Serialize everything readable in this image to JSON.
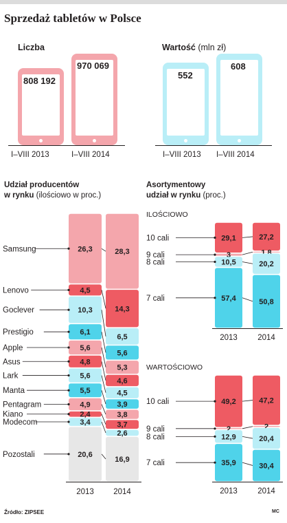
{
  "title": "Sprzedaż tabletów w Polsce",
  "source": "Źródło: ZIPSEE",
  "credit": "MC",
  "colors": {
    "pink": "#f4a6ac",
    "pink_light": "#f6b9bd",
    "red": "#ee5b63",
    "cyan": "#4fd3ea",
    "cyan_light": "#b9eef7",
    "grey": "#e7e7e7"
  },
  "sales": {
    "count": {
      "label": "Liczba",
      "periods": [
        "I–VIII 2013",
        "I–VIII 2014"
      ],
      "values": [
        "808 192",
        "970 069"
      ]
    },
    "value": {
      "label_bold": "Wartość",
      "label_unit": "(mln zł)",
      "periods": [
        "I–VIII 2013",
        "I–VIII 2014"
      ],
      "values": [
        "552",
        "608"
      ]
    }
  },
  "producers": {
    "heading_bold1": "Udział producentów",
    "heading_bold2": "w rynku",
    "heading_unit": "(ilościowo w proc.)",
    "years": [
      "2013",
      "2014"
    ]
  },
  "assortment": {
    "heading_bold1": "Asortymentowy",
    "heading_bold2": "udział w rynku",
    "heading_unit": "(proc.)",
    "years": [
      "2013",
      "2014"
    ],
    "quantity_label": "ILOŚCIOWO",
    "value_label": "WARTOŚCIOWO"
  },
  "chart_data": [
    {
      "type": "bar",
      "title": "Liczba",
      "categories": [
        "I–VIII 2013",
        "I–VIII 2014"
      ],
      "values": [
        808192,
        970069
      ]
    },
    {
      "type": "bar",
      "title": "Wartość (mln zł)",
      "categories": [
        "I–VIII 2013",
        "I–VIII 2014"
      ],
      "values": [
        552,
        608
      ]
    },
    {
      "type": "bar",
      "stacked": true,
      "title": "Udział producentów w rynku (ilościowo w proc.)",
      "categories": [
        "2013",
        "2014"
      ],
      "series": [
        {
          "name": "Samsung",
          "values": [
            26.3,
            28.3
          ],
          "color": "#f4a6ac"
        },
        {
          "name": "Lenovo",
          "values": [
            4.5,
            14.3
          ],
          "color": "#ee5b63"
        },
        {
          "name": "Goclever",
          "values": [
            10.3,
            6.5
          ],
          "color": "#b9eef7"
        },
        {
          "name": "Prestigio",
          "values": [
            6.1,
            5.6
          ],
          "color": "#4fd3ea"
        },
        {
          "name": "Apple",
          "values": [
            5.6,
            5.3
          ],
          "color": "#f4a6ac"
        },
        {
          "name": "Asus",
          "values": [
            4.8,
            4.6
          ],
          "color": "#ee5b63"
        },
        {
          "name": "Lark",
          "values": [
            5.6,
            4.5
          ],
          "color": "#b9eef7"
        },
        {
          "name": "Manta",
          "values": [
            5.5,
            3.9
          ],
          "color": "#4fd3ea"
        },
        {
          "name": "Pentagram",
          "values": [
            4.9,
            3.8
          ],
          "color": "#f4a6ac"
        },
        {
          "name": "Kiano",
          "values": [
            2.4,
            3.7
          ],
          "color": "#ee5b63"
        },
        {
          "name": "Modecom",
          "values": [
            3.4,
            2.6
          ],
          "color": "#b9eef7"
        },
        {
          "name": "Pozostali",
          "values": [
            20.6,
            16.9
          ],
          "color": "#e7e7e7"
        }
      ]
    },
    {
      "type": "bar",
      "stacked": true,
      "title": "ILOŚCIOWO",
      "categories": [
        "2013",
        "2014"
      ],
      "series": [
        {
          "name": "10 cali",
          "values": [
            29.1,
            27.2
          ],
          "color": "#ee5b63"
        },
        {
          "name": "9 cali",
          "values": [
            3,
            1.8
          ],
          "color": "#f4a6ac"
        },
        {
          "name": "8 cali",
          "values": [
            10.5,
            20.2
          ],
          "color": "#b9eef7"
        },
        {
          "name": "7 cali",
          "values": [
            57.4,
            50.8
          ],
          "color": "#4fd3ea"
        }
      ]
    },
    {
      "type": "bar",
      "stacked": true,
      "title": "WARTOŚCIOWO",
      "categories": [
        "2013",
        "2014"
      ],
      "series": [
        {
          "name": "10 cali",
          "values": [
            49.2,
            47.2
          ],
          "color": "#ee5b63"
        },
        {
          "name": "9 cali",
          "values": [
            2,
            2
          ],
          "color": "#f4a6ac"
        },
        {
          "name": "8 cali",
          "values": [
            12.9,
            20.4
          ],
          "color": "#b9eef7"
        },
        {
          "name": "7 cali",
          "values": [
            35.9,
            30.4
          ],
          "color": "#4fd3ea"
        }
      ]
    }
  ]
}
